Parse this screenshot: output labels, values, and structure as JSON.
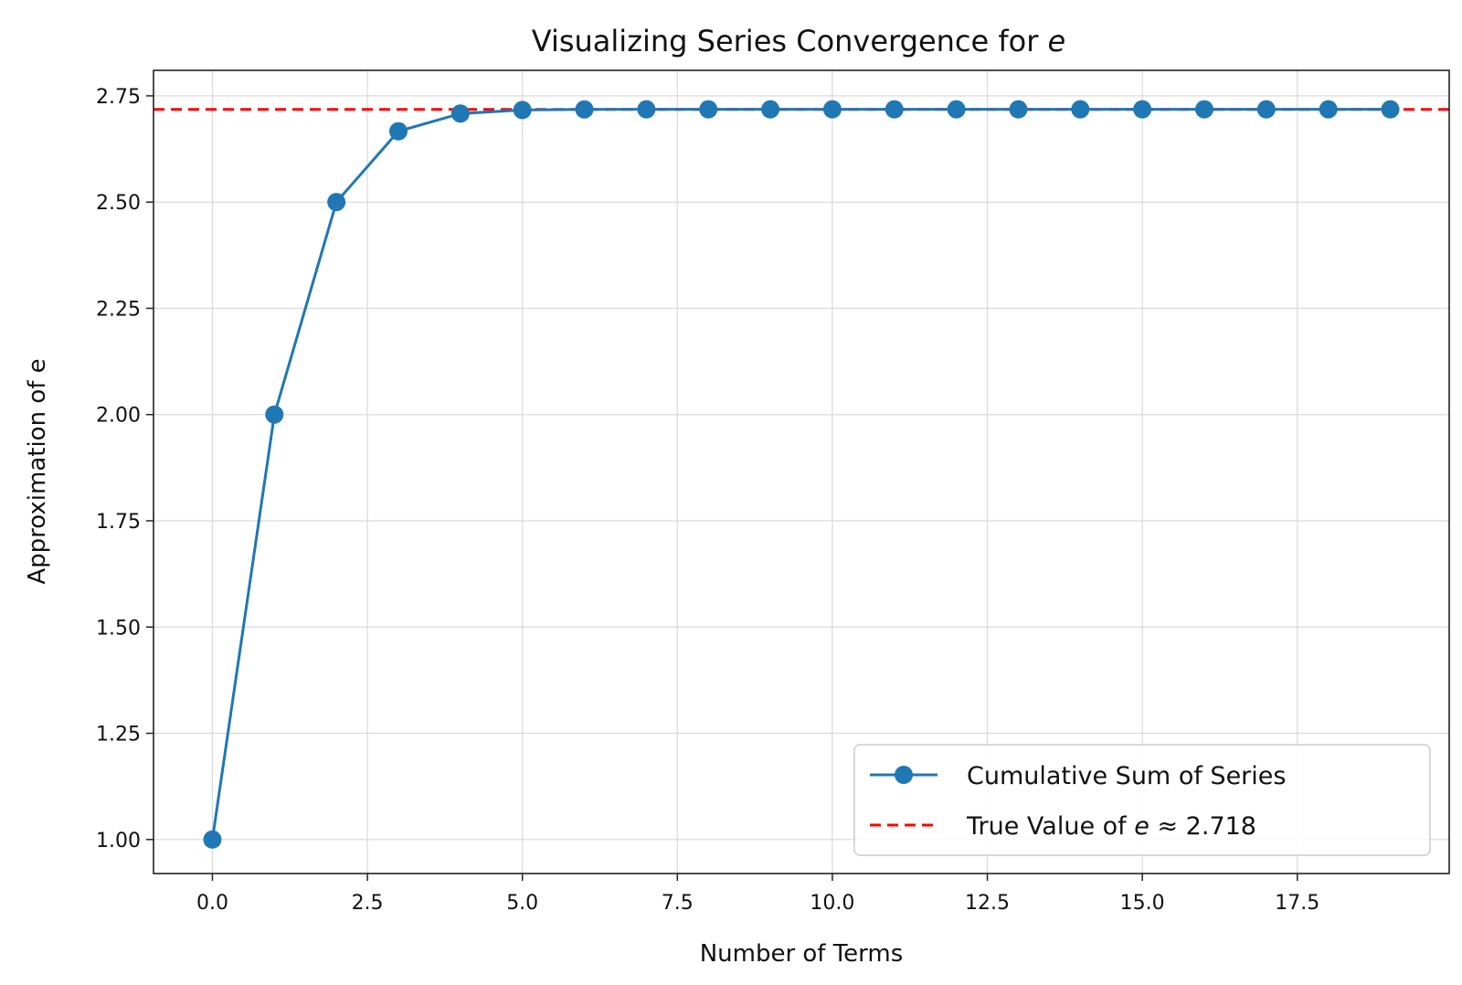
{
  "chart_data": {
    "type": "line",
    "title": "Visualizing Series Convergence for ",
    "title_symbol": "e",
    "xlabel": "Number of Terms",
    "ylabel": "Approximation of e",
    "xlim": [
      -0.95,
      19.95
    ],
    "ylim": [
      0.92,
      2.81
    ],
    "x_ticks": [
      0,
      2.5,
      5,
      7.5,
      10,
      12.5,
      15,
      17.5
    ],
    "x_tick_labels": [
      "0.0",
      "2.5",
      "5.0",
      "7.5",
      "10.0",
      "12.5",
      "15.0",
      "17.5"
    ],
    "y_ticks": [
      1.0,
      1.25,
      1.5,
      1.75,
      2.0,
      2.25,
      2.5,
      2.75
    ],
    "y_tick_labels": [
      "1.00",
      "1.25",
      "1.50",
      "1.75",
      "2.00",
      "2.25",
      "2.50",
      "2.75"
    ],
    "grid": true,
    "series": [
      {
        "name": "Cumulative Sum of Series",
        "style": "solid-with-markers",
        "color": "#1f77b4",
        "x": [
          0,
          1,
          2,
          3,
          4,
          5,
          6,
          7,
          8,
          9,
          10,
          11,
          12,
          13,
          14,
          15,
          16,
          17,
          18,
          19
        ],
        "values": [
          1.0,
          2.0,
          2.5,
          2.6667,
          2.7083,
          2.7167,
          2.7181,
          2.7183,
          2.7183,
          2.7183,
          2.7183,
          2.7183,
          2.7183,
          2.7183,
          2.7183,
          2.7183,
          2.7183,
          2.7183,
          2.7183,
          2.7183
        ]
      }
    ],
    "reference_line": {
      "name_prefix": "True Value of ",
      "name_symbol": "e",
      "name_suffix": " ≈ 2.718",
      "value": 2.718,
      "style": "dashed",
      "color": "#ff0000"
    },
    "legend_position": "lower-right"
  }
}
